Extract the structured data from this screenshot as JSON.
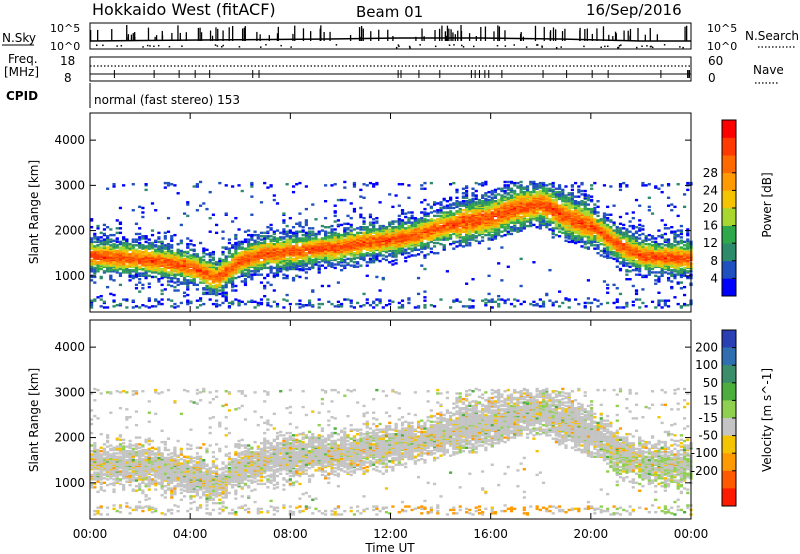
{
  "header": {
    "station": "Hokkaido West (fitACF)",
    "beam": "Beam 01",
    "date": "16/Sep/2016"
  },
  "top_panels": {
    "nsky_label": "N.Sky",
    "nsky_ticks": [
      "10^5",
      "10^0"
    ],
    "nsearch_label": "N.Search",
    "nsearch_ticks": [
      "10^5",
      "10^0"
    ],
    "freq_label": "Freq.",
    "freq_unit": "[MHz]",
    "freq_ticks": [
      "18",
      "8"
    ],
    "nave_label": "Nave",
    "nave_ticks": [
      "60",
      "0"
    ],
    "cpid_label": "CPID",
    "cpid_text": "normal (fast stereo) 153"
  },
  "chart_data": [
    {
      "type": "heatmap",
      "name": "power-panel",
      "ylabel": "Slant Range [km]",
      "y_ticks": [
        1000,
        2000,
        3000,
        4000
      ],
      "ylim": [
        200,
        4600
      ],
      "colorbar_label": "Power [dB]",
      "colorbar_ticks": [
        "4",
        "8",
        "12",
        "16",
        "20",
        "24",
        "28"
      ],
      "colorbar_colors": [
        "#0000ff",
        "#2050c0",
        "#2d8a6a",
        "#2ea84a",
        "#a8d830",
        "#f5c400",
        "#ff9a00",
        "#ff6a00",
        "#ff3a00",
        "#ff0000"
      ],
      "echo_band": {
        "hours": [
          0,
          1,
          2,
          3,
          4,
          5,
          6,
          7,
          8,
          9,
          10,
          11,
          12,
          13,
          14,
          15,
          16,
          17,
          18,
          19,
          20,
          21,
          22,
          23,
          24
        ],
        "center_km": [
          1450,
          1400,
          1380,
          1300,
          1200,
          950,
          1350,
          1500,
          1550,
          1600,
          1650,
          1750,
          1800,
          1900,
          2100,
          2200,
          2300,
          2500,
          2600,
          2300,
          2100,
          1700,
          1450,
          1400,
          1400
        ]
      }
    },
    {
      "type": "heatmap",
      "name": "velocity-panel",
      "ylabel": "Slant Range [km]",
      "y_ticks": [
        1000,
        2000,
        3000,
        4000
      ],
      "ylim": [
        200,
        4600
      ],
      "colorbar_label": "Velocity [m s^-1]",
      "colorbar_ticks": [
        "200",
        "100",
        "50",
        "15",
        "-15",
        "-50",
        "-100",
        "-200"
      ],
      "colorbar_colors": [
        "#2b3fb5",
        "#2f6fb0",
        "#3c8e6a",
        "#4cae3c",
        "#90d050",
        "#c4c4c4",
        "#f5c400",
        "#ff9a00",
        "#ff5a00",
        "#ff1a00"
      ]
    }
  ],
  "x_axis": {
    "label": "Time UT",
    "ticks": [
      "00:00",
      "04:00",
      "08:00",
      "12:00",
      "16:00",
      "20:00",
      "00:00"
    ]
  }
}
